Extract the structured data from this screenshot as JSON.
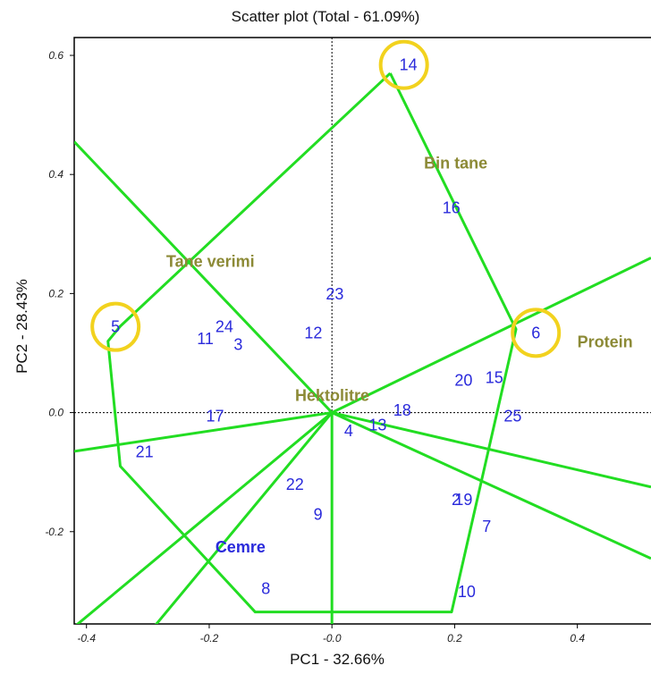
{
  "chart_data": {
    "type": "scatter",
    "title": "Scatter plot (Total - 61.09%)",
    "xlabel": "PC1 - 32.66%",
    "ylabel": "PC2 - 28.43%",
    "xlim": [
      -0.42,
      0.52
    ],
    "ylim": [
      -0.355,
      0.63
    ],
    "x_ticks": [
      {
        "value": -0.4,
        "label": "-0.4"
      },
      {
        "value": -0.2,
        "label": "-0.2"
      },
      {
        "value": 0.0,
        "label": "-0.0"
      },
      {
        "value": 0.2,
        "label": "0.2"
      },
      {
        "value": 0.4,
        "label": "0.4"
      }
    ],
    "y_ticks": [
      {
        "value": 0.6,
        "label": "0.6"
      },
      {
        "value": 0.4,
        "label": "0.4"
      },
      {
        "value": 0.2,
        "label": "0.2"
      },
      {
        "value": 0.0,
        "label": "0.0"
      },
      {
        "value": -0.2,
        "label": "-0.2"
      }
    ],
    "points": [
      {
        "label": "14",
        "x": 0.11,
        "y": 0.575
      },
      {
        "label": "16",
        "x": 0.18,
        "y": 0.335
      },
      {
        "label": "23",
        "x": -0.01,
        "y": 0.19
      },
      {
        "label": "5",
        "x": -0.36,
        "y": 0.135
      },
      {
        "label": "24",
        "x": -0.19,
        "y": 0.135
      },
      {
        "label": "11",
        "x": -0.22,
        "y": 0.115
      },
      {
        "label": "3",
        "x": -0.16,
        "y": 0.105
      },
      {
        "label": "12",
        "x": -0.045,
        "y": 0.125
      },
      {
        "label": "6",
        "x": 0.325,
        "y": 0.125
      },
      {
        "label": "20",
        "x": 0.2,
        "y": 0.045
      },
      {
        "label": "15",
        "x": 0.25,
        "y": 0.05
      },
      {
        "label": "18",
        "x": 0.1,
        "y": -0.005
      },
      {
        "label": "25",
        "x": 0.28,
        "y": -0.015
      },
      {
        "label": "17",
        "x": -0.205,
        "y": -0.015
      },
      {
        "label": "13",
        "x": 0.06,
        "y": -0.03
      },
      {
        "label": "4",
        "x": 0.02,
        "y": -0.04
      },
      {
        "label": "21",
        "x": -0.32,
        "y": -0.075
      },
      {
        "label": "22",
        "x": -0.075,
        "y": -0.13
      },
      {
        "label": "19",
        "x": 0.2,
        "y": -0.155
      },
      {
        "label": "2",
        "x": 0.195,
        "y": -0.155
      },
      {
        "label": "9",
        "x": -0.03,
        "y": -0.18
      },
      {
        "label": "7",
        "x": 0.245,
        "y": -0.2
      },
      {
        "label": "8",
        "x": -0.115,
        "y": -0.305
      },
      {
        "label": "10",
        "x": 0.205,
        "y": -0.31
      }
    ],
    "variables": [
      {
        "name": "Bin tane",
        "x": 0.15,
        "y": 0.41
      },
      {
        "name": "Tane verimi",
        "x": -0.27,
        "y": 0.245
      },
      {
        "name": "Protein",
        "x": 0.4,
        "y": 0.11
      },
      {
        "name": "Hektolitre",
        "x": -0.06,
        "y": 0.02
      },
      {
        "name": "Cemre",
        "x": -0.19,
        "y": -0.235
      }
    ],
    "hull": [
      [
        0.095,
        0.57
      ],
      [
        0.3,
        0.14
      ],
      [
        0.195,
        -0.335
      ],
      [
        -0.125,
        -0.335
      ],
      [
        -0.345,
        -0.09
      ],
      [
        -0.365,
        0.12
      ],
      [
        -0.345,
        0.145
      ],
      [
        0.095,
        0.57
      ]
    ],
    "rays": [
      [
        0.0,
        0.0,
        -0.42,
        0.455
      ],
      [
        0.0,
        0.0,
        0.52,
        0.26
      ],
      [
        0.0,
        0.0,
        0.52,
        -0.125
      ],
      [
        0.0,
        0.0,
        0.52,
        -0.245
      ],
      [
        0.0,
        0.0,
        0.0,
        -0.355
      ],
      [
        0.0,
        0.0,
        -0.42,
        -0.36
      ],
      [
        0.0,
        0.0,
        -0.29,
        -0.36
      ],
      [
        0.0,
        0.0,
        -0.42,
        -0.065
      ]
    ],
    "highlighted_points": [
      "14",
      "5",
      "6"
    ],
    "colors": {
      "lines": "#22dd22",
      "points": "#2a2adb",
      "variables": "#8c8a36",
      "highlight": "#f2d21e"
    }
  }
}
